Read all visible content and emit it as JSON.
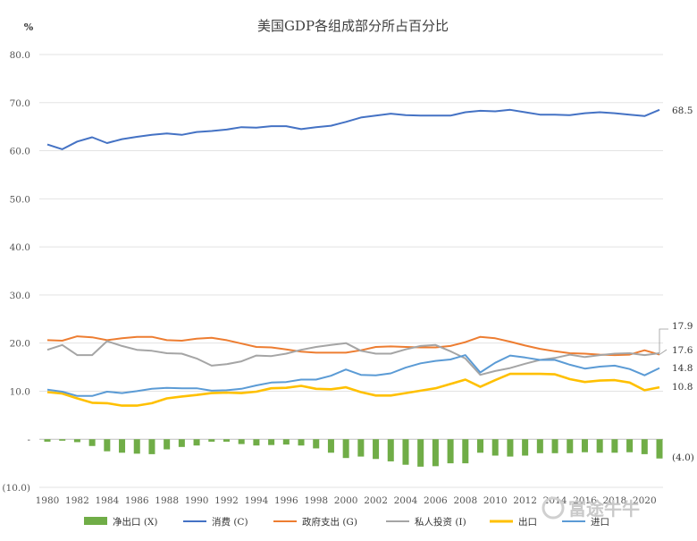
{
  "chart_data": {
    "type": "line",
    "title": "美国GDP各组成部分所占百分比",
    "unit": "%",
    "ylim": [
      -10,
      80
    ],
    "y_ticks": [
      "80.0",
      "70.0",
      "60.0",
      "50.0",
      "40.0",
      "30.0",
      "20.0",
      "10.0",
      "-",
      "(10.0)"
    ],
    "x_ticks": [
      "1980",
      "1982",
      "1984",
      "1986",
      "1988",
      "1990",
      "1992",
      "1994",
      "1996",
      "1998",
      "2000",
      "2002",
      "2004",
      "2006",
      "2008",
      "2010",
      "2012",
      "2014",
      "2016",
      "2018",
      "2020"
    ],
    "years": [
      1980,
      1981,
      1982,
      1983,
      1984,
      1985,
      1986,
      1987,
      1988,
      1989,
      1990,
      1991,
      1992,
      1993,
      1994,
      1995,
      1996,
      1997,
      1998,
      1999,
      2000,
      2001,
      2002,
      2003,
      2004,
      2005,
      2006,
      2007,
      2008,
      2009,
      2010,
      2011,
      2012,
      2013,
      2014,
      2015,
      2016,
      2017,
      2018,
      2019,
      2020,
      2021
    ],
    "grid": true,
    "legend_position": "bottom",
    "series": [
      {
        "name": "净出口 (X)",
        "type": "bar",
        "color": "#70ad47",
        "values": [
          -0.5,
          -0.3,
          -0.6,
          -1.4,
          -2.5,
          -2.8,
          -3.0,
          -3.1,
          -2.1,
          -1.6,
          -1.3,
          -0.5,
          -0.5,
          -1.0,
          -1.3,
          -1.2,
          -1.1,
          -1.3,
          -1.9,
          -2.8,
          -3.9,
          -3.6,
          -4.1,
          -4.6,
          -5.3,
          -5.7,
          -5.6,
          -5.0,
          -5.0,
          -2.8,
          -3.4,
          -3.6,
          -3.4,
          -2.9,
          -2.9,
          -2.9,
          -2.7,
          -2.8,
          -2.8,
          -2.7,
          -3.1,
          -4.0
        ]
      },
      {
        "name": "消费 (C)",
        "type": "line",
        "color": "#4472c4",
        "values": [
          61.3,
          60.3,
          61.9,
          62.8,
          61.6,
          62.4,
          62.9,
          63.3,
          63.6,
          63.3,
          63.9,
          64.1,
          64.4,
          64.9,
          64.8,
          65.1,
          65.1,
          64.5,
          64.9,
          65.2,
          66.0,
          66.9,
          67.3,
          67.7,
          67.4,
          67.3,
          67.3,
          67.3,
          68.0,
          68.3,
          68.2,
          68.5,
          68.0,
          67.5,
          67.5,
          67.4,
          67.8,
          68.0,
          67.8,
          67.5,
          67.2,
          68.5
        ]
      },
      {
        "name": "政府支出 (G)",
        "type": "line",
        "color": "#ed7d31",
        "values": [
          20.6,
          20.5,
          21.4,
          21.2,
          20.6,
          21.0,
          21.3,
          21.3,
          20.6,
          20.5,
          20.9,
          21.1,
          20.6,
          19.9,
          19.2,
          19.1,
          18.7,
          18.2,
          18.0,
          18.0,
          18.0,
          18.5,
          19.2,
          19.3,
          19.2,
          19.1,
          19.1,
          19.4,
          20.2,
          21.3,
          21.0,
          20.3,
          19.5,
          18.8,
          18.3,
          17.9,
          17.8,
          17.6,
          17.5,
          17.6,
          18.5,
          17.6
        ]
      },
      {
        "name": "私人投资 (I)",
        "type": "line",
        "color": "#a5a5a5",
        "values": [
          18.6,
          19.6,
          17.5,
          17.5,
          20.4,
          19.4,
          18.6,
          18.4,
          17.9,
          17.8,
          16.8,
          15.3,
          15.6,
          16.2,
          17.4,
          17.3,
          17.8,
          18.6,
          19.2,
          19.6,
          20.0,
          18.4,
          17.8,
          17.8,
          18.7,
          19.4,
          19.6,
          18.3,
          16.8,
          13.4,
          14.2,
          14.8,
          15.7,
          16.5,
          16.9,
          17.6,
          17.1,
          17.5,
          17.8,
          17.9,
          17.5,
          17.9
        ]
      },
      {
        "name": "出口",
        "type": "line",
        "color": "#ffc000",
        "values": [
          9.8,
          9.5,
          8.5,
          7.6,
          7.5,
          7.0,
          7.0,
          7.5,
          8.5,
          8.9,
          9.2,
          9.6,
          9.7,
          9.6,
          9.9,
          10.6,
          10.7,
          11.1,
          10.5,
          10.4,
          10.8,
          9.8,
          9.1,
          9.1,
          9.6,
          10.1,
          10.6,
          11.5,
          12.4,
          10.9,
          12.3,
          13.6,
          13.6,
          13.6,
          13.5,
          12.5,
          11.9,
          12.2,
          12.3,
          11.8,
          10.2,
          10.8
        ]
      },
      {
        "name": "进口",
        "type": "line",
        "color": "#5b9bd5",
        "values": [
          10.3,
          9.9,
          9.0,
          9.0,
          9.9,
          9.6,
          10.0,
          10.5,
          10.7,
          10.6,
          10.6,
          10.1,
          10.2,
          10.5,
          11.2,
          11.8,
          11.9,
          12.4,
          12.4,
          13.2,
          14.5,
          13.4,
          13.3,
          13.7,
          14.9,
          15.8,
          16.3,
          16.6,
          17.5,
          13.9,
          15.9,
          17.4,
          17.0,
          16.5,
          16.5,
          15.5,
          14.7,
          15.1,
          15.3,
          14.6,
          13.3,
          14.8
        ]
      }
    ],
    "end_labels": [
      "68.5",
      "17.9",
      "17.6",
      "14.8",
      "10.8",
      "(4.0)"
    ]
  },
  "watermark": "富途牛牛"
}
